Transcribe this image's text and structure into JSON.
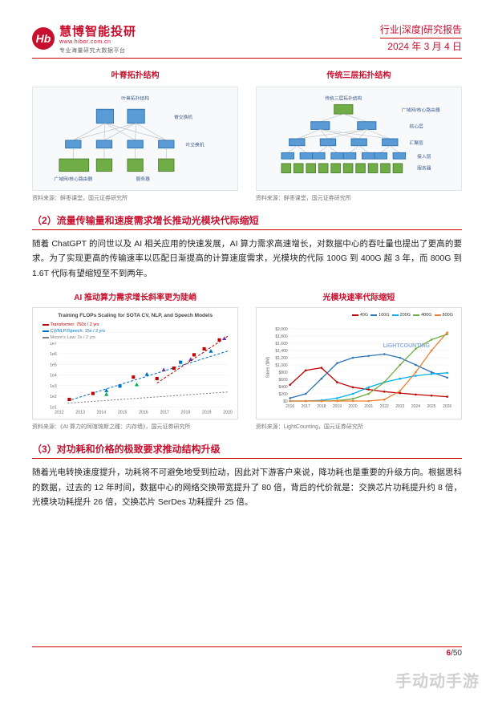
{
  "header": {
    "logo_badge": "Hb",
    "logo_main": "慧博智能投研",
    "logo_domain": "www.hibor.com.cn",
    "logo_slogan": "专业海量研究大数据平台",
    "doc_type": "行业|深度|研究报告",
    "doc_date": "2024 年 3 月 4 日"
  },
  "diagrams": {
    "left_title": "叶脊拓扑结构",
    "right_title": "传统三层拓扑结构",
    "left_box_caption": "叶脊拓扑结构",
    "right_box_caption": "传统三层拓扑结构",
    "left_labels": {
      "spine": "脊交换机",
      "leaf": "叶交换机",
      "wan": "广域网/核心路由器",
      "server": "服务器"
    },
    "right_labels": {
      "wan": "广域网/核心路由器",
      "core": "核心层",
      "agg": "汇聚层",
      "access": "接入层",
      "server": "服务器"
    },
    "left_source": "资料来源：鲜枣课堂，国元证券研究所",
    "right_source": "资料来源：鲜枣课堂，国元证券研究所",
    "colors": {
      "bg": "#f7f9fb",
      "border": "#e0e6ec",
      "node_blue": "#5b9bd5",
      "node_green": "#70ad47",
      "link": "#bbbbbb",
      "label": "#3a5a8a"
    }
  },
  "section2": {
    "heading": "（2）流量传输量和速度需求增长推动光模块代际缩短",
    "body": "随着 ChatGPT 的问世以及 AI 相关应用的快速发展，AI 算力需求高速增长，对数据中心的吞吐量也提出了更高的要求。为了实现更高的传输速率以匹配日渐提高的计算速度需求，光模块的代际 100G 到 400G 超 3 年，而 800G 到 1.6T 代际有望缩短至不到两年。"
  },
  "charts": {
    "left": {
      "title": "AI 推动算力需求增长斜率更为陡峭",
      "subtitle": "Training FLOPs Scaling for SOTA CV, NLP, and Speech Models",
      "legend": [
        {
          "label": "Transformer: 750x / 2 yrs",
          "color": "#c00000"
        },
        {
          "label": "CV/NLP/Speech: 15x / 2 yrs",
          "color": "#0070c0"
        },
        {
          "label": "Moore's Law: 2x / 2 yrs",
          "color": "#7f7f7f"
        }
      ],
      "x_years": [
        "2012",
        "2013",
        "2014",
        "2015",
        "2016",
        "2017",
        "2018",
        "2019",
        "2020"
      ],
      "y_log_range": [
        10.0,
        100000000.0
      ],
      "trend_lines": [
        {
          "color": "#c00000",
          "points": [
            [
              0.58,
              0.68
            ],
            [
              1.0,
              0.05
            ]
          ],
          "dash": "3,2"
        },
        {
          "color": "#0070c0",
          "points": [
            [
              0.05,
              0.92
            ],
            [
              1.0,
              0.25
            ]
          ],
          "dash": "3,2"
        },
        {
          "color": "#7f7f7f",
          "points": [
            [
              0.05,
              0.95
            ],
            [
              1.0,
              0.8
            ]
          ],
          "dash": "2,2"
        }
      ],
      "points": [
        {
          "x": 0.06,
          "y": 0.9,
          "c": "#c00000",
          "sh": "sq"
        },
        {
          "x": 0.2,
          "y": 0.82,
          "c": "#c00000",
          "sh": "sq"
        },
        {
          "x": 0.28,
          "y": 0.78,
          "c": "#0070c0",
          "sh": "tri"
        },
        {
          "x": 0.28,
          "y": 0.83,
          "c": "#00b050",
          "sh": "tri"
        },
        {
          "x": 0.36,
          "y": 0.72,
          "c": "#0070c0",
          "sh": "sq"
        },
        {
          "x": 0.44,
          "y": 0.6,
          "c": "#c00000",
          "sh": "sq"
        },
        {
          "x": 0.46,
          "y": 0.7,
          "c": "#00b050",
          "sh": "tri"
        },
        {
          "x": 0.52,
          "y": 0.56,
          "c": "#0070c0",
          "sh": "tri"
        },
        {
          "x": 0.58,
          "y": 0.62,
          "c": "#c00000",
          "sh": "sq"
        },
        {
          "x": 0.62,
          "y": 0.5,
          "c": "#7030a0",
          "sh": "tri"
        },
        {
          "x": 0.68,
          "y": 0.48,
          "c": "#c00000",
          "sh": "sq"
        },
        {
          "x": 0.72,
          "y": 0.4,
          "c": "#0070c0",
          "sh": "sq"
        },
        {
          "x": 0.78,
          "y": 0.36,
          "c": "#7030a0",
          "sh": "tri"
        },
        {
          "x": 0.8,
          "y": 0.3,
          "c": "#c00000",
          "sh": "sq"
        },
        {
          "x": 0.86,
          "y": 0.22,
          "c": "#c00000",
          "sh": "sq"
        },
        {
          "x": 0.9,
          "y": 0.25,
          "c": "#0070c0",
          "sh": "tri"
        },
        {
          "x": 0.95,
          "y": 0.1,
          "c": "#c00000",
          "sh": "sq"
        },
        {
          "x": 0.98,
          "y": 0.08,
          "c": "#7030a0",
          "sh": "tri"
        }
      ],
      "source": "资料来源：《AI 算力的阿喀琉斯之踵：内存墙》，国元证券研究所"
    },
    "right": {
      "title": "光模块速率代际缩短",
      "brand_watermark": "LIGHTCOUNTING",
      "legend": [
        {
          "label": "40G",
          "color": "#c00000"
        },
        {
          "label": "100G",
          "color": "#2e75b6"
        },
        {
          "label": "200G",
          "color": "#00b0f0"
        },
        {
          "label": "400G",
          "color": "#70ad47"
        },
        {
          "label": "800G",
          "color": "#ed7d31"
        }
      ],
      "x_years": [
        "2016",
        "2017",
        "2018",
        "2019",
        "2020",
        "2021",
        "2022",
        "2023",
        "2024",
        "2025",
        "2026"
      ],
      "y_label": "Sales ($M)",
      "y_ticks": [
        0,
        200,
        400,
        600,
        800,
        1000,
        1200,
        1400,
        1600,
        1800,
        2000
      ],
      "series": [
        {
          "color": "#c00000",
          "vals": [
            450,
            850,
            920,
            520,
            380,
            320,
            260,
            220,
            180,
            150,
            120
          ]
        },
        {
          "color": "#2e75b6",
          "vals": [
            80,
            200,
            620,
            1050,
            1200,
            1250,
            1300,
            1200,
            1000,
            800,
            650
          ]
        },
        {
          "color": "#00b0f0",
          "vals": [
            0,
            0,
            20,
            80,
            200,
            380,
            520,
            620,
            700,
            750,
            780
          ]
        },
        {
          "color": "#70ad47",
          "vals": [
            0,
            0,
            0,
            10,
            60,
            200,
            520,
            1000,
            1450,
            1700,
            1850
          ]
        },
        {
          "color": "#ed7d31",
          "vals": [
            0,
            0,
            0,
            0,
            0,
            0,
            40,
            280,
            800,
            1400,
            1900
          ]
        }
      ],
      "source": "资料来源：LightCounting，国元证券研究所"
    }
  },
  "section3": {
    "heading": "（3）对功耗和价格的极致要求推动结构升级",
    "body": "随着光电转换速度提升，功耗将不可避免地受到拉动，因此对下游客户来说，降功耗也是重要的升级方向。根据思科的数据，过去的 12 年时间，数据中心的网络交换带宽提升了 80 倍，背后的代价就是：交换芯片功耗提升约 8 倍，光模块功耗提升 26 倍，交换芯片 SerDes 功耗提升 25 倍。"
  },
  "footer": {
    "current": "6",
    "sep": "/",
    "total": "50"
  },
  "watermark": "手动动手游"
}
